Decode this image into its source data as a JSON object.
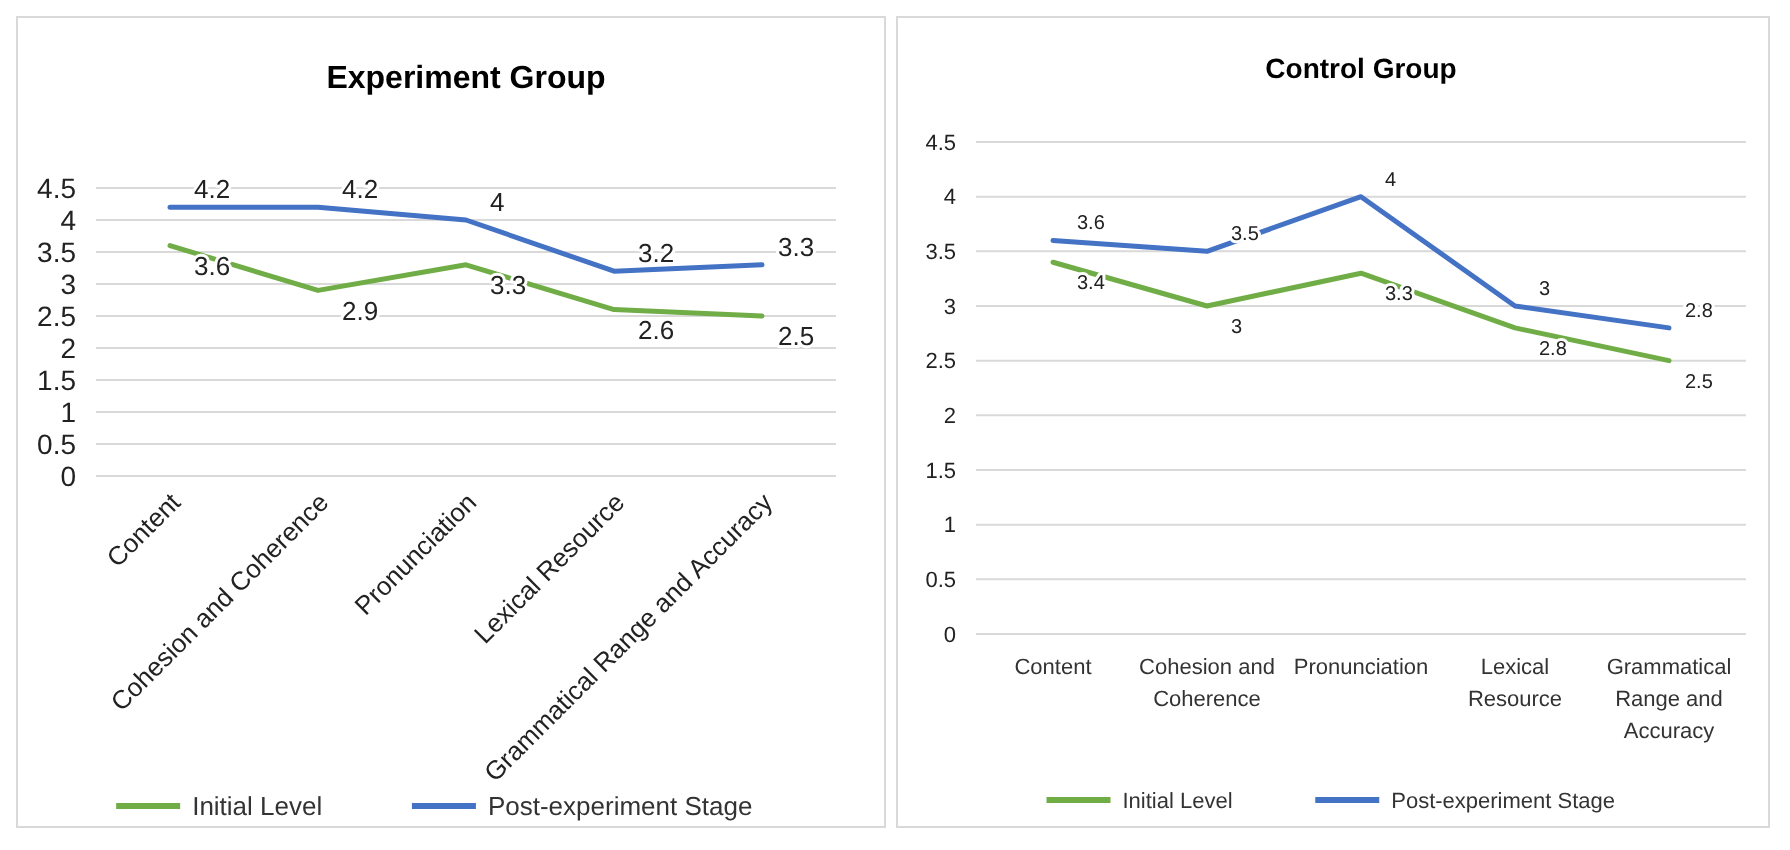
{
  "chart_data": [
    {
      "type": "line",
      "title": "Experiment Group",
      "categories": [
        "Content",
        "Cohesion and Coherence",
        "Pronunciation",
        "Lexical Resource",
        "Grammatical Range and Accuracy"
      ],
      "series": [
        {
          "name": "Initial Level",
          "color": "#70ad47",
          "values": [
            3.6,
            2.9,
            3.3,
            2.6,
            2.5
          ]
        },
        {
          "name": "Post-experiment Stage",
          "color": "#4472c4",
          "values": [
            4.2,
            4.2,
            4.0,
            3.2,
            3.3
          ]
        }
      ],
      "ylim": [
        0,
        4.5
      ],
      "yticks": [
        0,
        0.5,
        1,
        1.5,
        2,
        2.5,
        3,
        3.5,
        4,
        4.5
      ],
      "grid": "y",
      "legend": "bottom",
      "data_labels": true,
      "marker": "none"
    },
    {
      "type": "line",
      "title": "Control Group",
      "categories": [
        "Content",
        "Cohesion and Coherence",
        "Pronunciation",
        "Lexical Resource",
        "Grammatical Range and Accuracy"
      ],
      "series": [
        {
          "name": "Initial Level",
          "color": "#70ad47",
          "values": [
            3.4,
            3.0,
            3.3,
            2.8,
            2.5
          ]
        },
        {
          "name": "Post-experiment Stage",
          "color": "#4472c4",
          "values": [
            3.6,
            3.5,
            4.0,
            3.0,
            2.8
          ]
        }
      ],
      "ylim": [
        0,
        4.5
      ],
      "yticks": [
        0,
        0.5,
        1,
        1.5,
        2,
        2.5,
        3,
        3.5,
        4,
        4.5
      ],
      "grid": "y",
      "legend": "bottom",
      "data_labels": true,
      "marker": "none"
    }
  ]
}
